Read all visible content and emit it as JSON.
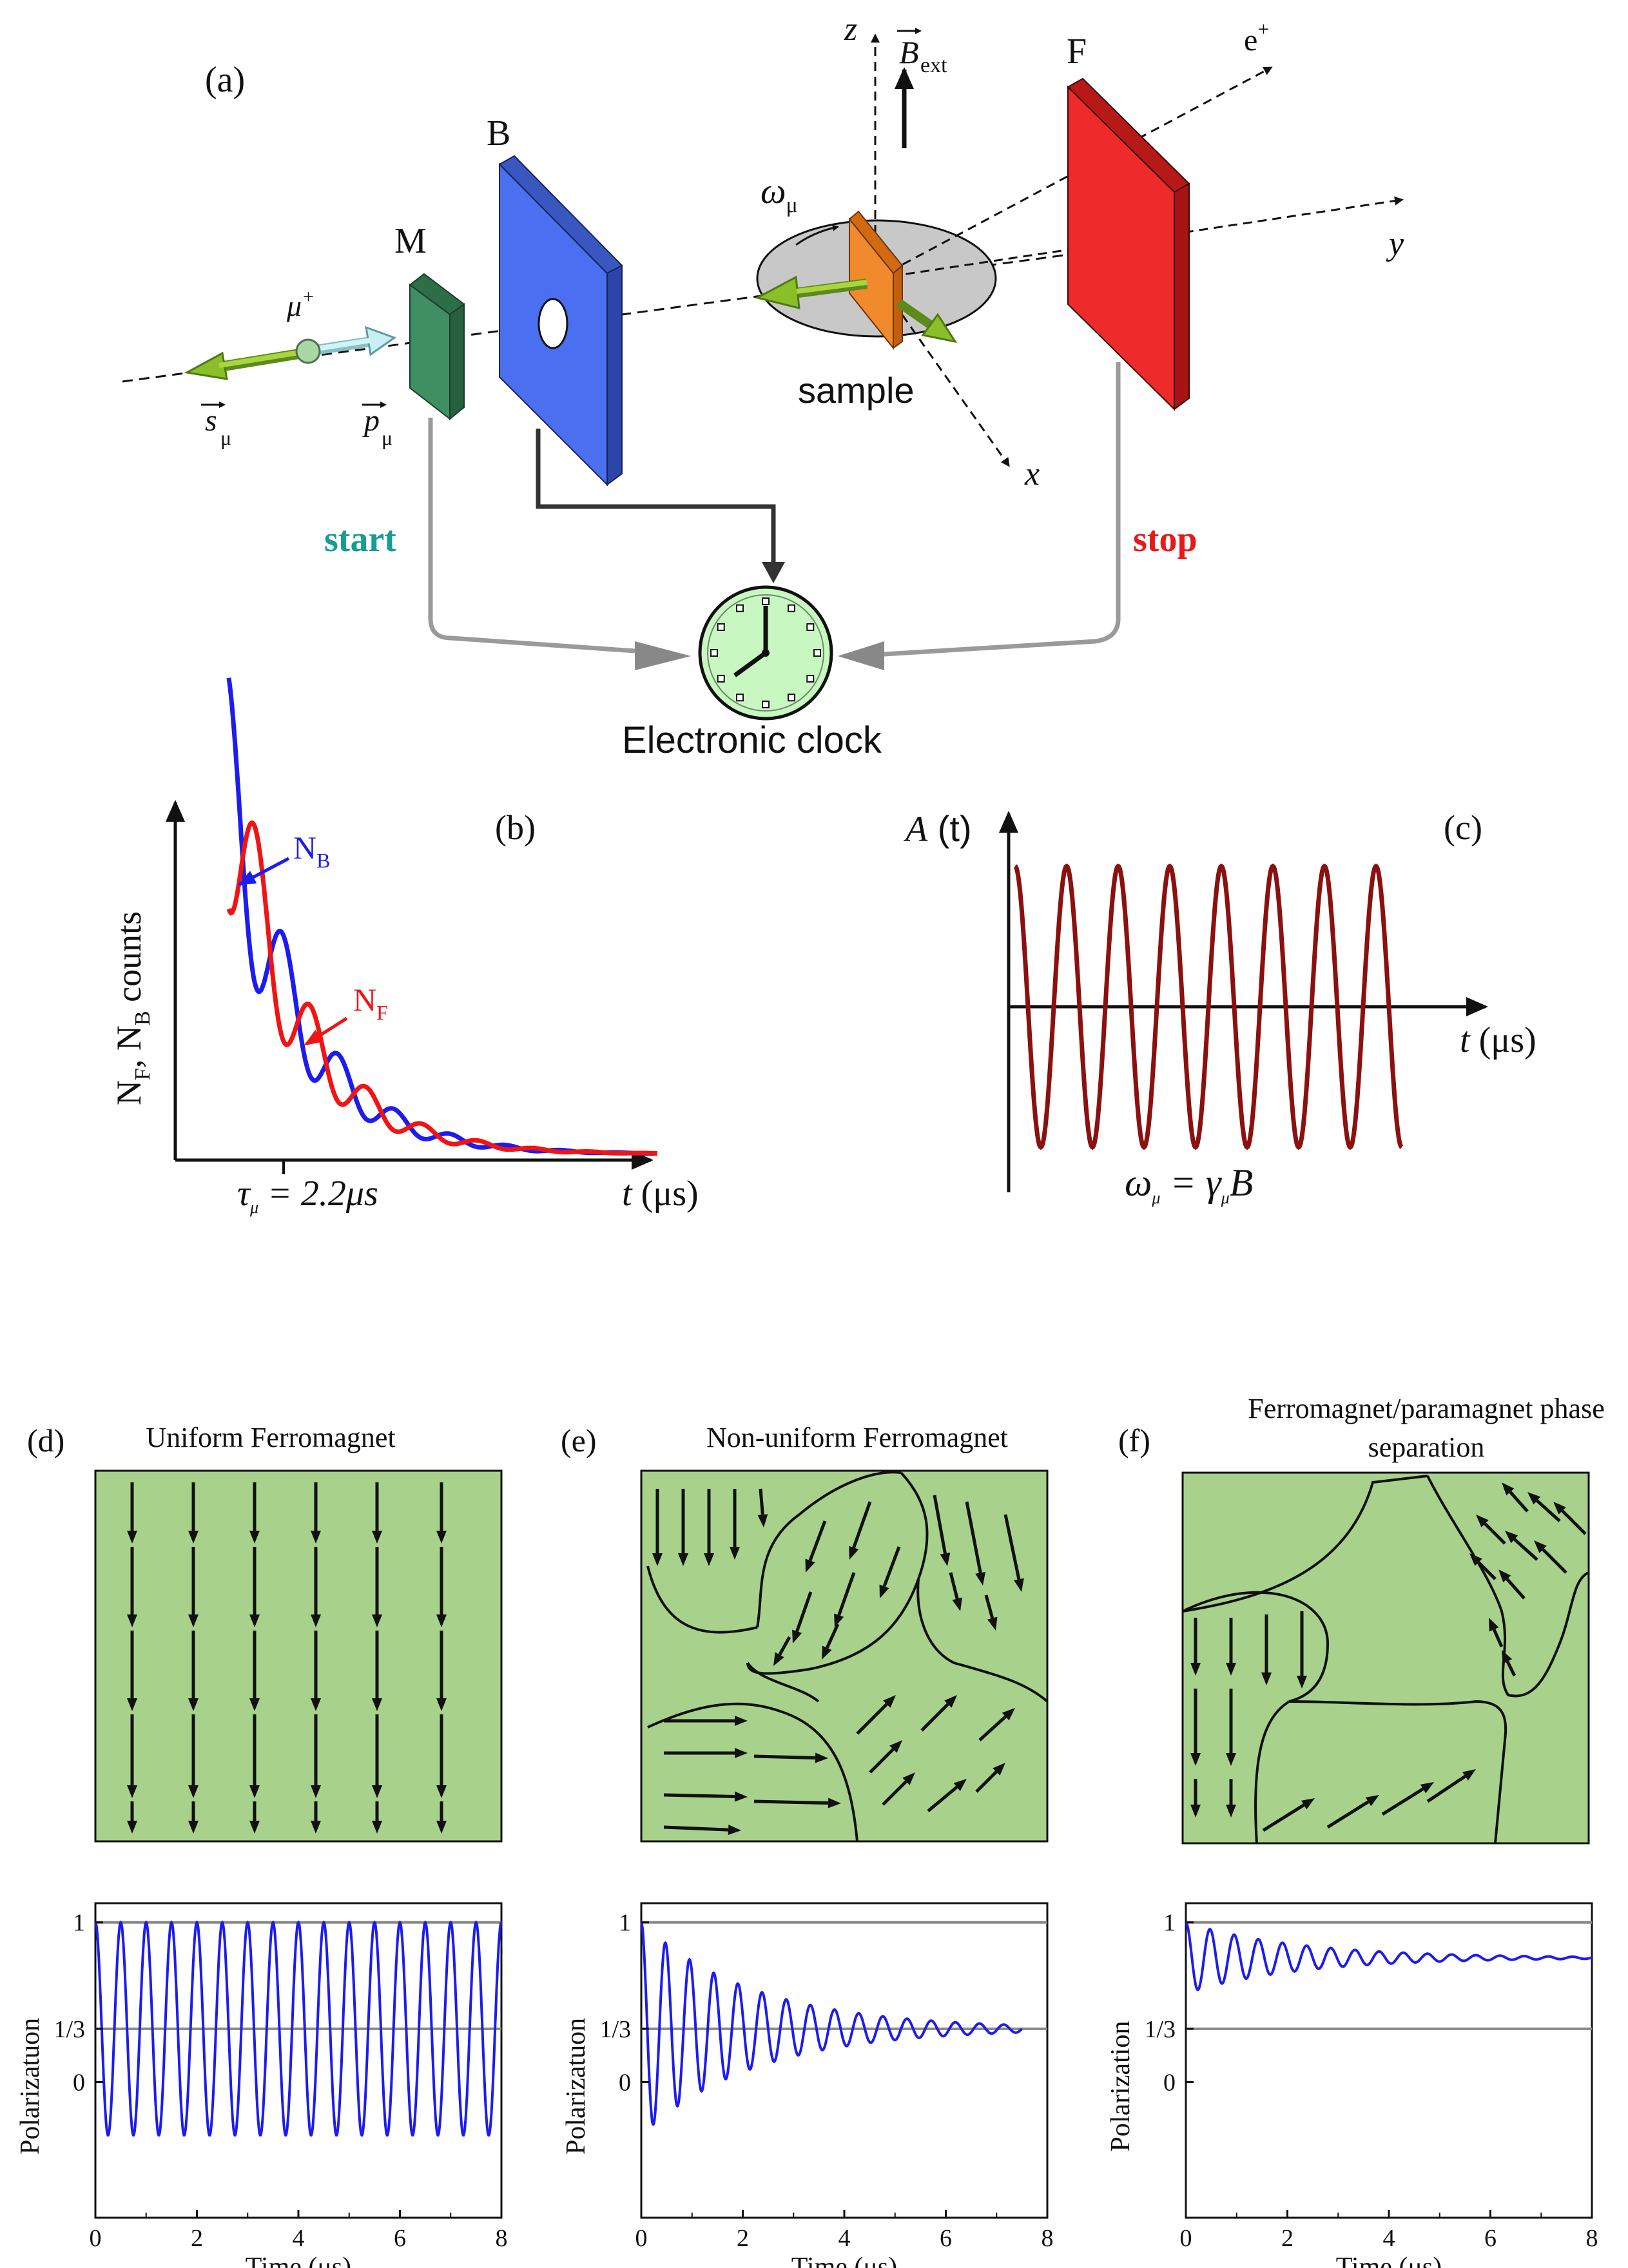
{
  "colors": {
    "green_detector": "#3f8f63",
    "blue_detector": "#3f63e0",
    "red_detector": "#ee2a2a",
    "orange_sample": "#f08a2c",
    "sample_disk": "#c8c8c8",
    "clock_face": "#c9f7c2",
    "domain_fill": "#a8d18c",
    "start_color": "#1a9b95",
    "stop_color": "#e81919",
    "curve_blue": "#1c1cf0",
    "curve_red": "#f01414",
    "curve_dark_red": "#8b1010",
    "grey_line": "#888888"
  },
  "panel_a": {
    "label": "(a)",
    "detector_m": "M",
    "detector_b": "B",
    "detector_f": "F",
    "muon": "μ",
    "muon_sup": "+",
    "spin": "s",
    "spin_sub": "μ",
    "momentum": "p",
    "momentum_sub": "μ",
    "omega": "ω",
    "omega_sub": "μ",
    "field": "B",
    "field_sub": "ext",
    "axis_z": "z",
    "axis_y": "y",
    "axis_x": "x",
    "positron": "e",
    "positron_sup": "+",
    "sample_label": "sample",
    "start_label": "start",
    "stop_label": "stop",
    "clock_label": "Electronic clock"
  },
  "panel_b": {
    "label": "(b)",
    "ylabel_1": "N",
    "ylabel_1_sub": "F",
    "ylabel_2": ", N",
    "ylabel_2_sub": "B",
    "ylabel_3": " counts",
    "nb_label": "N",
    "nb_sub": "B",
    "nf_label": "N",
    "nf_sub": "F",
    "tau_symbol": "τ",
    "tau_sub": "μ",
    "tau_text": " = 2.2μs",
    "xlabel_t": "t",
    "xlabel_unit": " (μs)"
  },
  "panel_c": {
    "label": "(c)",
    "ylabel_a": "A",
    "ylabel_t": " (t)",
    "xlabel_t": "t",
    "xlabel_unit": " (μs)",
    "formula_omega": "ω",
    "formula_mu1": "μ",
    "formula_eq": " = γ",
    "formula_mu2": "μ",
    "formula_b": "B"
  },
  "panel_d": {
    "label": "(d)",
    "title": "Uniform Ferromagnet"
  },
  "panel_e": {
    "label": "(e)",
    "title": "Non-uniform Ferromagnet"
  },
  "panel_f": {
    "label": "(f)",
    "title_line1": "Ferromagnet/paramagnet phase",
    "title_line2": "separation"
  },
  "chart_data": [
    {
      "type": "line",
      "title": "Uniform Ferromagnet",
      "xlabel": "Time (μs)",
      "ylabel": "Polarizatuon",
      "xlim": [
        0,
        8
      ],
      "ylim": [
        -0.85,
        1.12
      ],
      "x_ticks": [
        "0",
        "2",
        "4",
        "6",
        "8"
      ],
      "y_ticks": [
        "1",
        "1/3",
        "0"
      ],
      "reference_lines": [
        1,
        0.3333
      ],
      "model": {
        "mean": 0.3333,
        "amplitude": 0.6667,
        "cycles_per_us": 2.0,
        "decay_per_us": 0,
        "phase": 0
      },
      "series": [
        {
          "name": "Polarization",
          "color": "#1c1cf0"
        }
      ]
    },
    {
      "type": "line",
      "title": "Non-uniform Ferromagnet",
      "xlabel": "Time (μs)",
      "ylabel": "Polarizatuon",
      "xlim": [
        0,
        8
      ],
      "ylim": [
        -0.85,
        1.12
      ],
      "x_ticks": [
        "0",
        "2",
        "4",
        "6",
        "8"
      ],
      "y_ticks": [
        "1",
        "1/3",
        "0"
      ],
      "reference_lines": [
        1,
        0.3333
      ],
      "x_max_series": 7.5,
      "model": {
        "mean": 0.3333,
        "amplitude": 0.6667,
        "cycles_per_us": 2.1,
        "decay_per_us": 0.45,
        "phase": 0
      },
      "series": [
        {
          "name": "Polarization",
          "color": "#1c1cf0"
        }
      ]
    },
    {
      "type": "line",
      "title": "Ferromagnet/paramagnet phase separation",
      "xlabel": "Time (μs)",
      "ylabel": "Polarization",
      "xlim": [
        0,
        8
      ],
      "ylim": [
        -0.85,
        1.12
      ],
      "x_ticks": [
        "0",
        "2",
        "4",
        "6",
        "8"
      ],
      "y_ticks": [
        "1",
        "1/3",
        "0"
      ],
      "reference_lines": [
        1,
        0.3333
      ],
      "model": {
        "mean": 0.7778,
        "amplitude": 0.2222,
        "cycles_per_us": 2.1,
        "decay_per_us": 0.45,
        "phase": 0
      },
      "series": [
        {
          "name": "Polarization",
          "color": "#1c1cf0"
        }
      ]
    }
  ]
}
